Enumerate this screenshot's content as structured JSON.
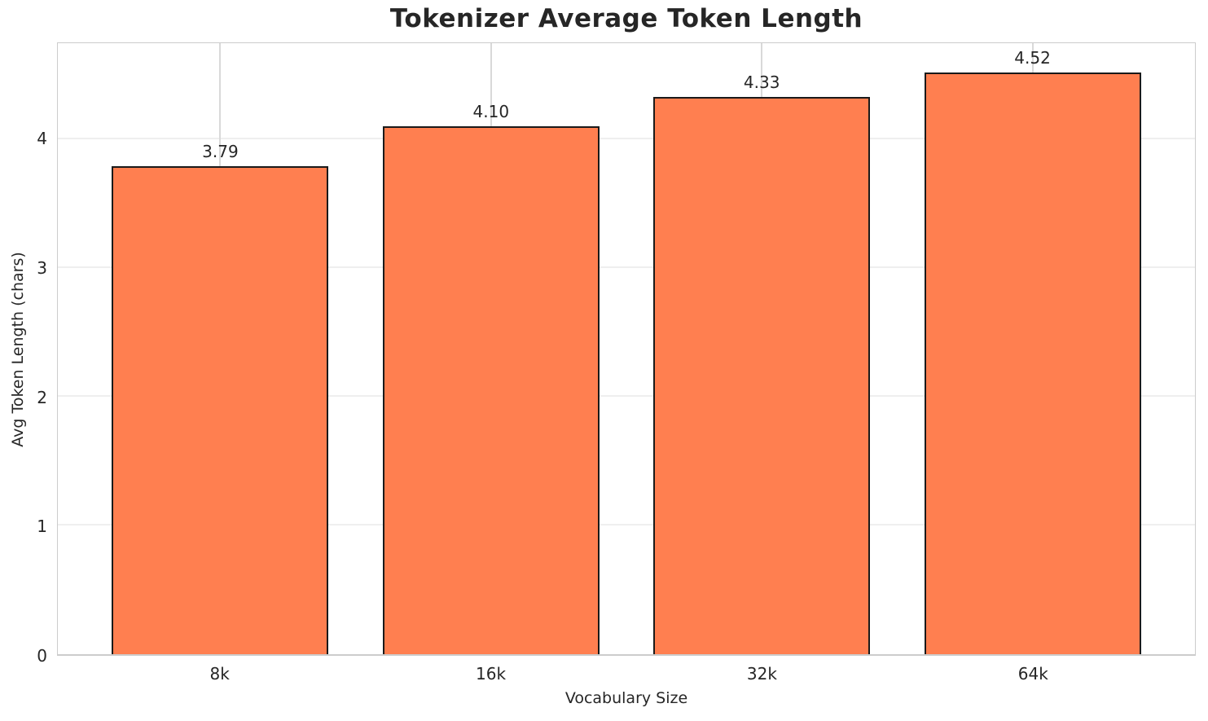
{
  "chart_data": {
    "type": "bar",
    "title": "Tokenizer Average Token Length",
    "xlabel": "Vocabulary Size",
    "ylabel": "Avg Token Length (chars)",
    "categories": [
      "8k",
      "16k",
      "32k",
      "64k"
    ],
    "values": [
      3.79,
      4.1,
      4.33,
      4.52
    ],
    "value_labels": [
      "3.79",
      "4.10",
      "4.33",
      "4.52"
    ],
    "yticks": [
      "0",
      "1",
      "2",
      "3",
      "4"
    ],
    "ytick_values": [
      0,
      1,
      2,
      3,
      4
    ],
    "ylim": [
      0,
      4.746
    ],
    "xlim": [
      -0.6,
      3.6
    ],
    "bar_rel_width": 0.8,
    "grid": true,
    "legend": null,
    "colors": {
      "bar_fill": "#FF7F50",
      "bar_edge": "#1a1a1a",
      "h_grid": "#efefef",
      "v_grid": "#d9d9d9",
      "spine": "#cccccc",
      "text": "#262626",
      "background": "#ffffff"
    }
  }
}
